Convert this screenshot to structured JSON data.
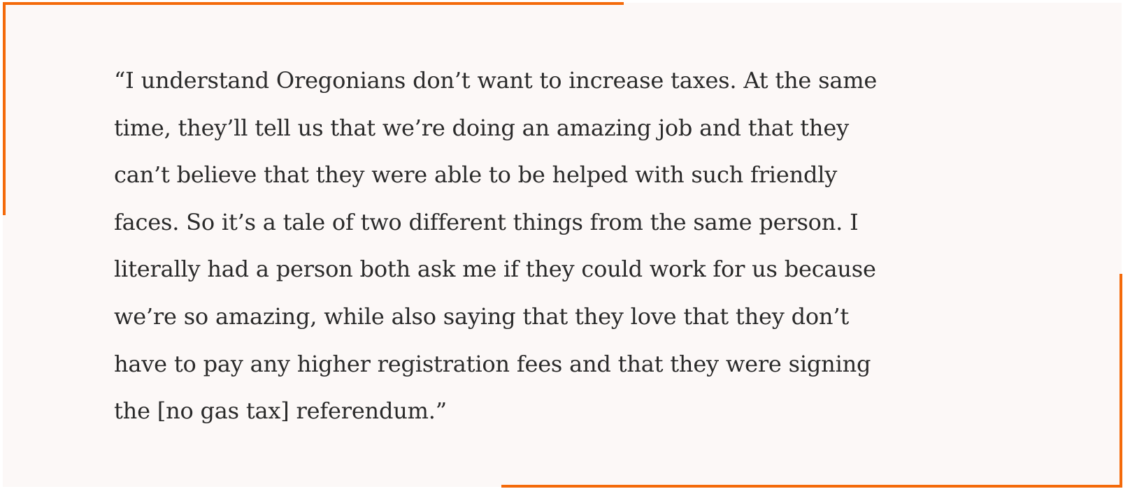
{
  "accent_color": "#f46a0a",
  "quote": {
    "lines": [
      "“I understand Oregonians don’t want to increase taxes. At the same",
      "time, they’ll tell us that we’re doing an amazing job and that they",
      "can’t believe that they were able to be helped with such friendly",
      "faces. So it’s a tale of two different things from the same person. I",
      "literally had a person both ask me if they could work for us because",
      "we’re so amazing, while also saying that they love that they don’t",
      "have to pay any higher registration fees and that they were signing",
      "the [no gas tax] referendum.”"
    ]
  }
}
